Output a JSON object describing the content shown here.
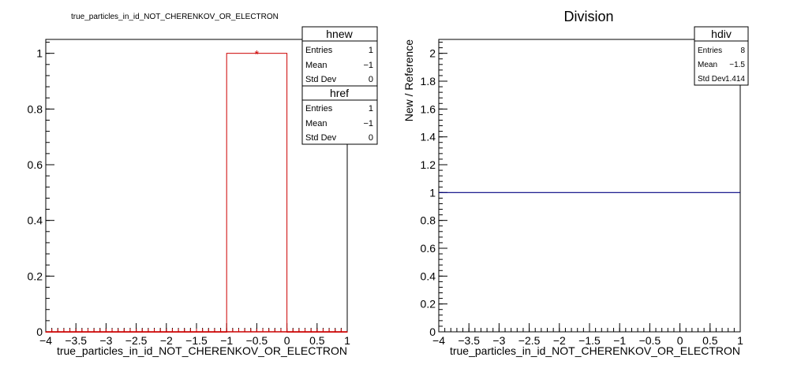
{
  "chart_data": [
    {
      "type": "bar",
      "title": "true_particles_in_id_NOT_CHERENKOV_OR_ELECTRON",
      "xlabel": "true_particles_in_id_NOT_CHERENKOV_OR_ELECTRON",
      "ylabel": "",
      "xlim": [
        -4,
        1
      ],
      "ylim": [
        0,
        1.05
      ],
      "x_ticks": [
        "−4",
        "−3.5",
        "−3",
        "−2.5",
        "−2",
        "−1.5",
        "−1",
        "−0.5",
        "0",
        "0.5",
        "1"
      ],
      "y_ticks": [
        "0",
        "0.2",
        "0.4",
        "0.6",
        "0.8",
        "1"
      ],
      "series": [
        {
          "name": "hnew",
          "color": "#cc0000",
          "bins": [
            [
              -4,
              -3.5,
              0
            ],
            [
              -3.5,
              -3,
              0
            ],
            [
              -3,
              -2.5,
              0
            ],
            [
              -2.5,
              -2,
              0
            ],
            [
              -2,
              -1.5,
              0
            ],
            [
              -1.5,
              -1,
              0
            ],
            [
              -1,
              0,
              1
            ],
            [
              0,
              0.5,
              0
            ],
            [
              0.5,
              1,
              0
            ]
          ]
        },
        {
          "name": "href",
          "color": "#cc0000",
          "marker_x": -0.5,
          "marker_y": 1
        }
      ],
      "stats": [
        {
          "name": "hnew",
          "rows": [
            [
              "Entries",
              "1"
            ],
            [
              "Mean",
              "−1"
            ],
            [
              "Std Dev",
              "0"
            ]
          ]
        },
        {
          "name": "href",
          "rows": [
            [
              "Entries",
              "1"
            ],
            [
              "Mean",
              "−1"
            ],
            [
              "Std Dev",
              "0"
            ]
          ]
        }
      ]
    },
    {
      "type": "line",
      "title": "Division",
      "xlabel": "true_particles_in_id_NOT_CHERENKOV_OR_ELECTRON",
      "ylabel": "New / Reference",
      "xlim": [
        -4,
        1
      ],
      "ylim": [
        0,
        2.1
      ],
      "x_ticks": [
        "−4",
        "−3.5",
        "−3",
        "−2.5",
        "−2",
        "−1.5",
        "−1",
        "−0.5",
        "0",
        "0.5",
        "1"
      ],
      "y_ticks": [
        "0",
        "0.2",
        "0.4",
        "0.6",
        "0.8",
        "1",
        "1.2",
        "1.4",
        "1.6",
        "1.8",
        "2"
      ],
      "series": [
        {
          "name": "hdiv",
          "color": "#000080",
          "x": [
            -4,
            1
          ],
          "y": [
            1,
            1
          ]
        }
      ],
      "stats": [
        {
          "name": "hdiv",
          "rows": [
            [
              "Entries",
              "8"
            ],
            [
              "Mean",
              "−1.5"
            ],
            [
              "Std Dev",
              "1.414"
            ]
          ]
        }
      ]
    }
  ]
}
